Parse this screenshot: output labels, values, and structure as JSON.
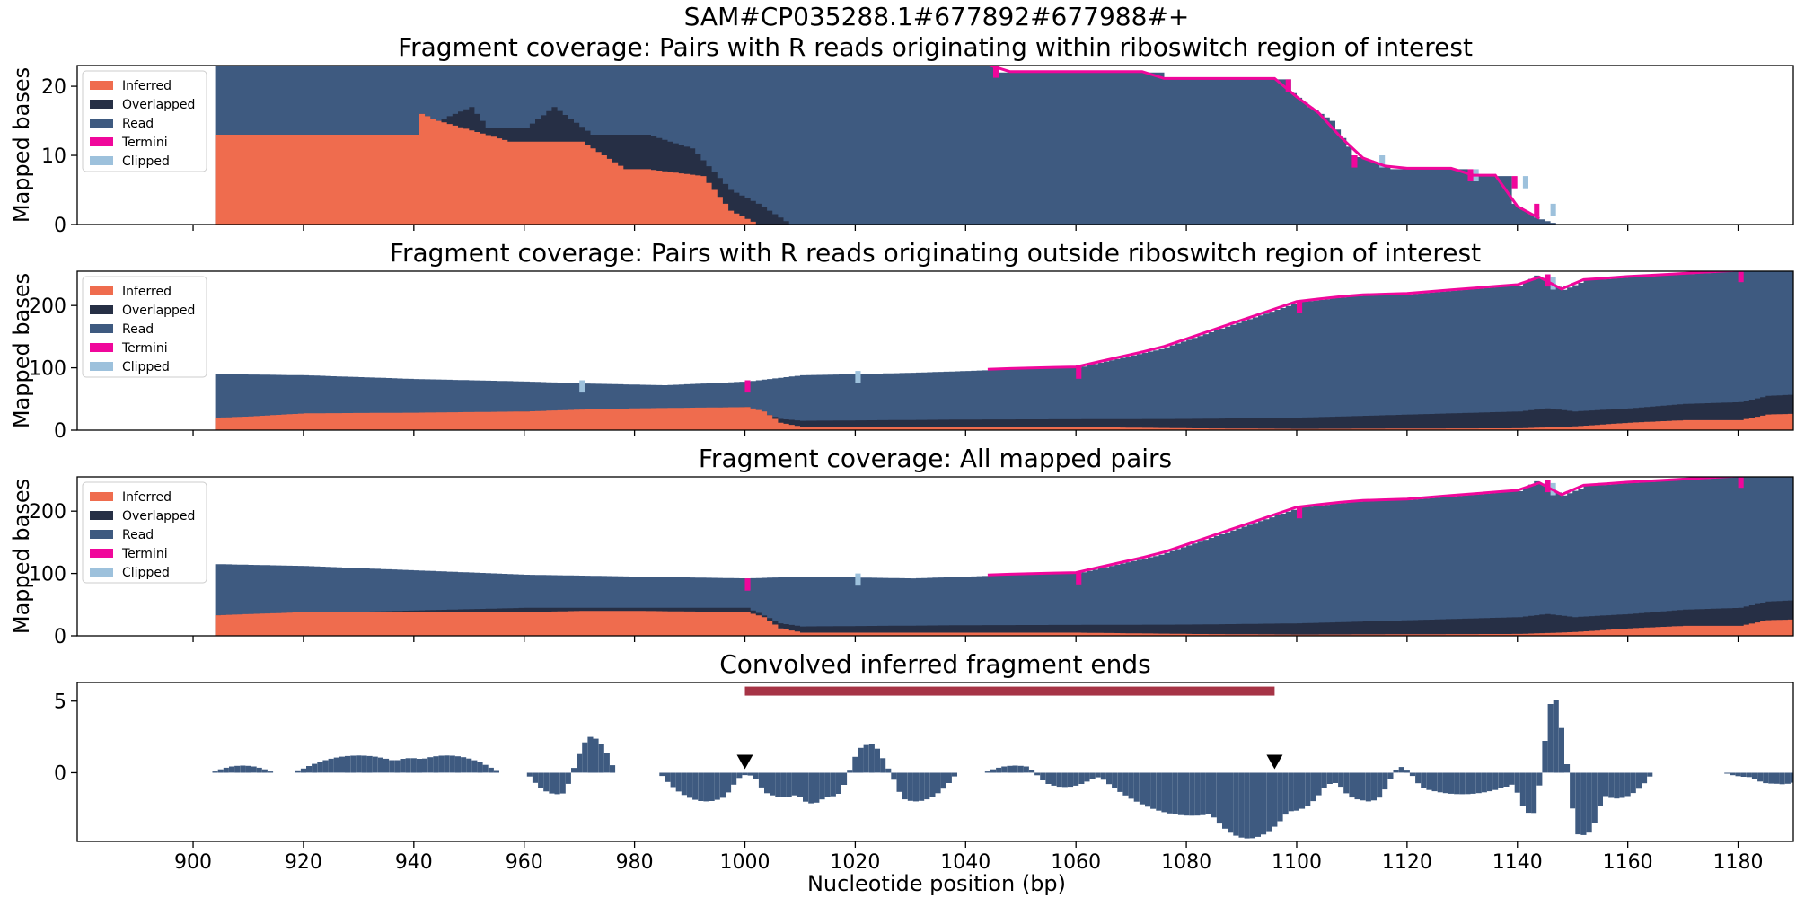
{
  "figure": {
    "suptitle": "SAM#CP035288.1#677892#677988#+",
    "xlabel": "Nucleotide position (bp)",
    "xticks": [
      900,
      920,
      940,
      960,
      980,
      1000,
      1020,
      1040,
      1060,
      1080,
      1100,
      1120,
      1140,
      1160,
      1180
    ],
    "xlim": [
      879,
      1190
    ]
  },
  "legend": {
    "entries": [
      {
        "label": "Inferred",
        "color": "#ef6c4e"
      },
      {
        "label": "Overlapped",
        "color": "#262f45"
      },
      {
        "label": "Read",
        "color": "#3e5a80"
      },
      {
        "label": "Termini",
        "color": "#f0079b"
      },
      {
        "label": "Clipped",
        "color": "#9dc1dc"
      }
    ]
  },
  "colors": {
    "inferred": "#ef6c4e",
    "overlapped": "#262f45",
    "read": "#3e5a80",
    "termini": "#f0079b",
    "clipped": "#9dc1dc",
    "bar": "#3e5a80",
    "region": "#a63446",
    "marker": "#000000"
  },
  "chart_data": [
    {
      "type": "area",
      "title": "Fragment coverage: Pairs with R reads originating within riboswitch region of interest",
      "ylabel": "Mapped bases",
      "ylim": [
        0,
        23
      ],
      "yticks": [
        0,
        10,
        20
      ],
      "x_range": [
        904,
        1192
      ],
      "series": [
        {
          "name": "Inferred",
          "points": [
            [
              904,
              13
            ],
            [
              940,
              13
            ],
            [
              941,
              16
            ],
            [
              944,
              15
            ],
            [
              957,
              12
            ],
            [
              969,
              12
            ],
            [
              970,
              12
            ],
            [
              978,
              8
            ],
            [
              982,
              8
            ],
            [
              992,
              7
            ],
            [
              997,
              2
            ],
            [
              1002,
              0
            ]
          ]
        },
        {
          "name": "Overlapped",
          "points": [
            [
              904,
              13
            ],
            [
              940,
              13
            ],
            [
              941,
              16
            ],
            [
              944,
              15
            ],
            [
              950,
              17
            ],
            [
              953,
              14
            ],
            [
              960,
              14
            ],
            [
              965,
              17
            ],
            [
              972,
              13
            ],
            [
              982,
              13
            ],
            [
              990,
              11
            ],
            [
              997,
              5
            ],
            [
              1002,
              3
            ],
            [
              1008,
              0
            ]
          ]
        },
        {
          "name": "Read",
          "points": [
            [
              904,
              23
            ],
            [
              1045,
              23
            ],
            [
              1046,
              22
            ],
            [
              1075,
              22
            ],
            [
              1076,
              21
            ],
            [
              1098,
              21
            ],
            [
              1099,
              19
            ],
            [
              1102,
              17
            ],
            [
              1106,
              15
            ],
            [
              1110,
              10
            ],
            [
              1114,
              9
            ],
            [
              1117,
              8
            ],
            [
              1130,
              8
            ],
            [
              1131,
              7
            ],
            [
              1138,
              7
            ],
            [
              1139,
              3
            ],
            [
              1143,
              1
            ],
            [
              1147,
              0
            ]
          ]
        },
        {
          "name": "Termini",
          "points": [
            [
              1045,
              23
            ],
            [
              1098,
              21
            ],
            [
              1110,
              10
            ],
            [
              1131,
              8
            ],
            [
              1139,
              7
            ],
            [
              1143,
              3
            ]
          ]
        },
        {
          "name": "Clipped",
          "points": [
            [
              1115,
              10
            ],
            [
              1132,
              8
            ],
            [
              1141,
              7
            ],
            [
              1146,
              3
            ]
          ]
        }
      ]
    },
    {
      "type": "area",
      "title": "Fragment coverage: Pairs with R reads originating outside riboswitch region of interest",
      "ylabel": "Mapped bases",
      "ylim": [
        0,
        255
      ],
      "yticks": [
        0,
        100,
        200
      ],
      "x_range": [
        904,
        1192
      ],
      "series": [
        {
          "name": "Inferred",
          "points": [
            [
              904,
              20
            ],
            [
              910,
              22
            ],
            [
              920,
              27
            ],
            [
              940,
              28
            ],
            [
              960,
              30
            ],
            [
              970,
              33
            ],
            [
              980,
              35
            ],
            [
              1000,
              37
            ],
            [
              1003,
              30
            ],
            [
              1006,
              12
            ],
            [
              1010,
              5
            ],
            [
              1060,
              5
            ],
            [
              1080,
              3
            ],
            [
              1100,
              2
            ],
            [
              1140,
              3
            ],
            [
              1150,
              6
            ],
            [
              1160,
              12
            ],
            [
              1170,
              16
            ],
            [
              1180,
              16
            ],
            [
              1185,
              25
            ],
            [
              1192,
              27
            ]
          ]
        },
        {
          "name": "Overlapped",
          "points": [
            [
              904,
              20
            ],
            [
              960,
              30
            ],
            [
              1000,
              37
            ],
            [
              1006,
              18
            ],
            [
              1010,
              15
            ],
            [
              1040,
              17
            ],
            [
              1080,
              18
            ],
            [
              1100,
              20
            ],
            [
              1120,
              25
            ],
            [
              1140,
              30
            ],
            [
              1145,
              35
            ],
            [
              1150,
              30
            ],
            [
              1160,
              35
            ],
            [
              1170,
              42
            ],
            [
              1180,
              45
            ],
            [
              1185,
              55
            ],
            [
              1192,
              58
            ]
          ]
        },
        {
          "name": "Read",
          "points": [
            [
              904,
              90
            ],
            [
              920,
              88
            ],
            [
              940,
              82
            ],
            [
              960,
              78
            ],
            [
              970,
              75
            ],
            [
              985,
              72
            ],
            [
              1000,
              78
            ],
            [
              1010,
              88
            ],
            [
              1020,
              90
            ],
            [
              1030,
              92
            ],
            [
              1050,
              98
            ],
            [
              1060,
              100
            ],
            [
              1065,
              110
            ],
            [
              1070,
              120
            ],
            [
              1075,
              130
            ],
            [
              1080,
              145
            ],
            [
              1085,
              160
            ],
            [
              1090,
              175
            ],
            [
              1095,
              190
            ],
            [
              1100,
              205
            ],
            [
              1110,
              215
            ],
            [
              1120,
              218
            ],
            [
              1130,
              225
            ],
            [
              1140,
              232
            ],
            [
              1143,
              248
            ],
            [
              1145,
              240
            ],
            [
              1148,
              225
            ],
            [
              1152,
              240
            ],
            [
              1160,
              245
            ],
            [
              1170,
              250
            ],
            [
              1180,
              255
            ],
            [
              1192,
              255
            ]
          ]
        },
        {
          "name": "Termini",
          "points": [
            [
              1000,
              80
            ],
            [
              1060,
              102
            ],
            [
              1100,
              208
            ],
            [
              1145,
              250
            ],
            [
              1180,
              257
            ]
          ]
        },
        {
          "name": "Clipped",
          "points": [
            [
              970,
              80
            ],
            [
              1020,
              95
            ],
            [
              1146,
              245
            ]
          ]
        }
      ]
    },
    {
      "type": "area",
      "title": "Fragment coverage: All mapped pairs",
      "ylabel": "Mapped bases",
      "ylim": [
        0,
        255
      ],
      "yticks": [
        0,
        100,
        200
      ],
      "x_range": [
        904,
        1192
      ],
      "series": [
        {
          "name": "Inferred",
          "points": [
            [
              904,
              33
            ],
            [
              910,
              35
            ],
            [
              920,
              38
            ],
            [
              940,
              38
            ],
            [
              960,
              38
            ],
            [
              970,
              40
            ],
            [
              980,
              40
            ],
            [
              1000,
              38
            ],
            [
              1003,
              30
            ],
            [
              1006,
              12
            ],
            [
              1010,
              5
            ],
            [
              1060,
              5
            ],
            [
              1080,
              3
            ],
            [
              1100,
              2
            ],
            [
              1140,
              3
            ],
            [
              1150,
              6
            ],
            [
              1160,
              12
            ],
            [
              1170,
              16
            ],
            [
              1180,
              16
            ],
            [
              1185,
              25
            ],
            [
              1192,
              27
            ]
          ]
        },
        {
          "name": "Overlapped",
          "points": [
            [
              904,
              33
            ],
            [
              960,
              45
            ],
            [
              1000,
              45
            ],
            [
              1006,
              20
            ],
            [
              1010,
              15
            ],
            [
              1040,
              17
            ],
            [
              1080,
              18
            ],
            [
              1100,
              20
            ],
            [
              1120,
              25
            ],
            [
              1140,
              30
            ],
            [
              1145,
              35
            ],
            [
              1150,
              30
            ],
            [
              1160,
              35
            ],
            [
              1170,
              42
            ],
            [
              1180,
              45
            ],
            [
              1185,
              55
            ],
            [
              1192,
              58
            ]
          ]
        },
        {
          "name": "Read",
          "points": [
            [
              904,
              115
            ],
            [
              920,
              112
            ],
            [
              940,
              105
            ],
            [
              960,
              98
            ],
            [
              980,
              95
            ],
            [
              1000,
              92
            ],
            [
              1010,
              95
            ],
            [
              1030,
              92
            ],
            [
              1050,
              98
            ],
            [
              1060,
              100
            ],
            [
              1065,
              110
            ],
            [
              1070,
              120
            ],
            [
              1075,
              130
            ],
            [
              1080,
              145
            ],
            [
              1085,
              160
            ],
            [
              1090,
              175
            ],
            [
              1095,
              190
            ],
            [
              1100,
              205
            ],
            [
              1110,
              215
            ],
            [
              1120,
              218
            ],
            [
              1130,
              225
            ],
            [
              1140,
              232
            ],
            [
              1143,
              248
            ],
            [
              1145,
              240
            ],
            [
              1148,
              225
            ],
            [
              1152,
              240
            ],
            [
              1160,
              245
            ],
            [
              1170,
              250
            ],
            [
              1180,
              255
            ],
            [
              1192,
              255
            ]
          ]
        },
        {
          "name": "Termini",
          "points": [
            [
              1000,
              92
            ],
            [
              1060,
              102
            ],
            [
              1100,
              208
            ],
            [
              1145,
              250
            ],
            [
              1180,
              257
            ]
          ]
        },
        {
          "name": "Clipped",
          "points": [
            [
              1020,
              100
            ],
            [
              1146,
              245
            ]
          ]
        }
      ]
    },
    {
      "type": "bar",
      "title": "Convolved inferred fragment ends",
      "ylim": [
        -4.8,
        6.3
      ],
      "yticks": [
        0,
        5
      ],
      "region": {
        "x": [
          1000,
          1096
        ],
        "y": 5.7
      },
      "markers": [
        {
          "x": 1000,
          "y": 0.5
        },
        {
          "x": 1096,
          "y": 0.5
        }
      ],
      "bumps": [
        {
          "c": 909,
          "w": 5,
          "h": 0.5
        },
        {
          "c": 930,
          "w": 11,
          "h": 1.2
        },
        {
          "c": 946,
          "w": 9,
          "h": 1.2
        },
        {
          "c": 966,
          "w": 5,
          "h": -1.5
        },
        {
          "c": 972,
          "w": 4,
          "h": 2.5
        },
        {
          "c": 993,
          "w": 8,
          "h": -2
        },
        {
          "c": 1000,
          "w": 3,
          "h": 0.7
        },
        {
          "c": 1007,
          "w": 7,
          "h": -1.7
        },
        {
          "c": 1015,
          "w": 5,
          "h": -1.7
        },
        {
          "c": 1023,
          "w": 5,
          "h": 2.0
        },
        {
          "c": 1031,
          "w": 7,
          "h": -2.0
        },
        {
          "c": 1049,
          "w": 5,
          "h": 0.5
        },
        {
          "c": 1058,
          "w": 6,
          "h": -1.0
        },
        {
          "c": 1081,
          "w": 17,
          "h": -3.0
        },
        {
          "c": 1095,
          "w": 10,
          "h": -3.0
        },
        {
          "c": 1105,
          "w": 6,
          "h": -0.8
        },
        {
          "c": 1113,
          "w": 5,
          "h": -2.0
        },
        {
          "c": 1119,
          "w": 3,
          "h": 0.9
        },
        {
          "c": 1130,
          "w": 13,
          "h": -1.5
        },
        {
          "c": 1143,
          "w": 3,
          "h": -2.7
        },
        {
          "c": 1147,
          "w": 3,
          "h": 6.0
        },
        {
          "c": 1151,
          "w": 4,
          "h": -4.3
        },
        {
          "c": 1158,
          "w": 6,
          "h": -1.8
        },
        {
          "c": 1182,
          "w": 4,
          "h": -0.3
        },
        {
          "c": 1188,
          "w": 5,
          "h": -0.8
        }
      ]
    }
  ]
}
